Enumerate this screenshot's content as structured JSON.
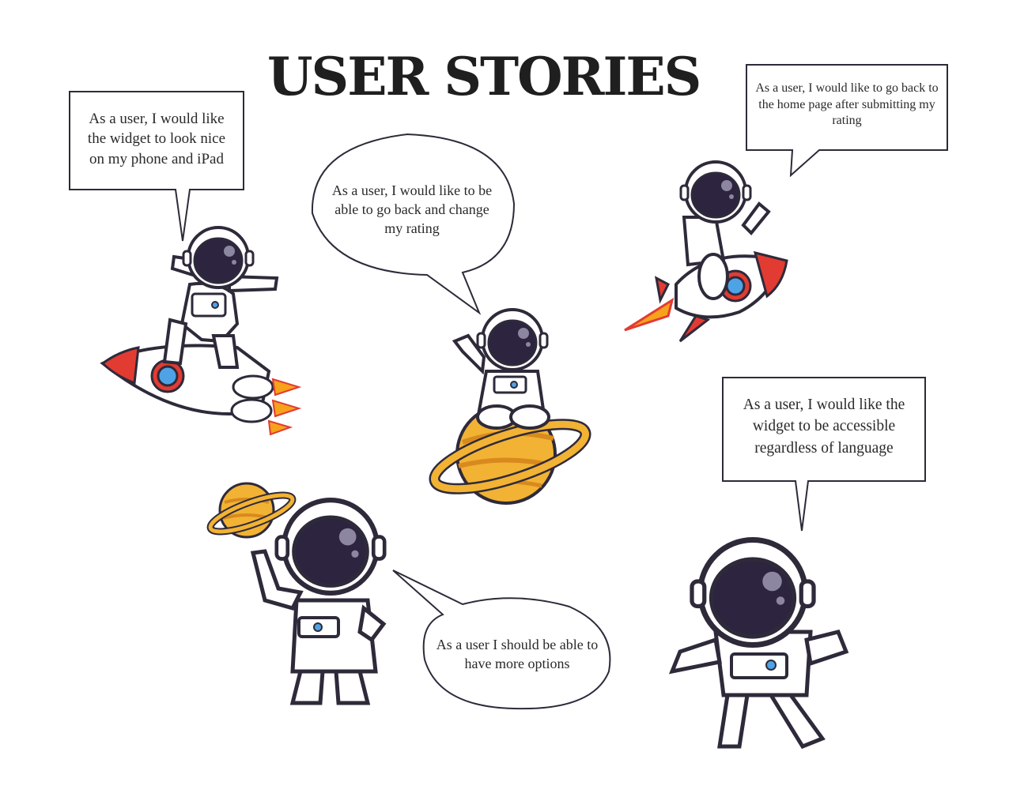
{
  "page": {
    "title": "USER STORIES"
  },
  "stories": [
    {
      "text": "As a user, I would like the widget to look nice on my phone and iPad",
      "illustration": "astronaut-dabbing-on-rocket"
    },
    {
      "text": "As a user, I would like to be able to go back and change my rating",
      "illustration": "astronaut-sitting-on-planet"
    },
    {
      "text": "As a user, I would like to go back to the home page after submitting my rating",
      "illustration": "astronaut-riding-rocket"
    },
    {
      "text": "As a user, I would like the widget to be accessible regardless of language",
      "illustration": "astronaut-floating"
    },
    {
      "text": "As a user I should be able to have more options",
      "illustration": "astronaut-spinning-planet"
    }
  ],
  "colors": {
    "outline": "#2e2a3a",
    "helmet_visor": "#2d2440",
    "suit": "#ffffff",
    "planet": "#f2b233",
    "rocket_red": "#e23b32",
    "rocket_window": "#4ea3e6",
    "flame": "#f7a21b"
  }
}
